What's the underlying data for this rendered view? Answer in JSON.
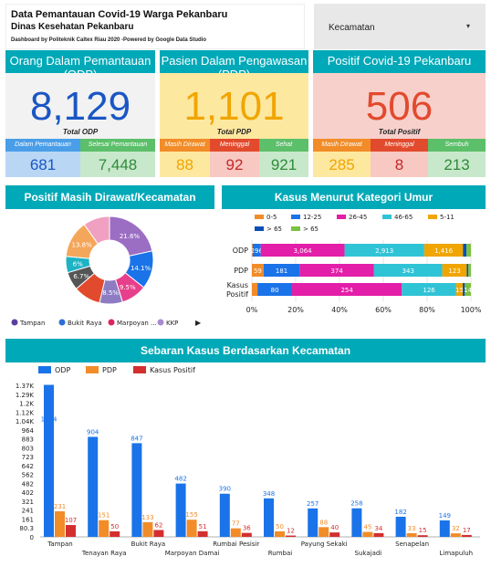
{
  "header": {
    "title": "Data Pemantauan Covid-19 Warga Pekanbaru",
    "subtitle": "Dinas Kesehatan Pekanbaru",
    "credit": "Dashboard by Politeknik Caltex Riau 2020 -Powered by Google Data Studio"
  },
  "filter": {
    "label": "Kecamatan",
    "arrow_icon": "dropdown-arrow-icon"
  },
  "odp": {
    "title": "Orang Dalam Pemantauan (ODP)",
    "value": "8,129",
    "total_label": "Total ODP",
    "sub": [
      {
        "label": "Dalam Pemantauan",
        "value": "681"
      },
      {
        "label": "Selesai Pemantauan",
        "value": "7,448"
      }
    ],
    "colors": {
      "head": "#00a9b8",
      "body": "#f2f2f2",
      "num": "#1a56c4",
      "sub1_head": "#4a9ee8",
      "sub1_body": "#b9d7f5",
      "sub2_head": "#5cbf6a",
      "sub2_body": "#c8e8cb"
    }
  },
  "pdp": {
    "title": "Pasien Dalam Pengawasan (PDP)",
    "value": "1,101",
    "total_label": "Total PDP",
    "sub": [
      {
        "label": "Masih Dirawat",
        "value": "88"
      },
      {
        "label": "Meninggal",
        "value": "92"
      },
      {
        "label": "Sehat",
        "value": "921"
      }
    ],
    "colors": {
      "head": "#00a9b8",
      "body": "#fde8a0",
      "num": "#f0a500"
    }
  },
  "positif": {
    "title": "Positif Covid-19 Pekanbaru",
    "value": "506",
    "total_label": "Total Positif",
    "sub": [
      {
        "label": "Masih Dirawat",
        "value": "285"
      },
      {
        "label": "Meninggal",
        "value": "8"
      },
      {
        "label": "Sembuh",
        "value": "213"
      }
    ],
    "colors": {
      "head": "#00a9b8",
      "body": "#f7d0cc",
      "num": "#e24a2d"
    }
  },
  "sections": {
    "donut_title": "Positif Masih Dirawat/Kecamatan",
    "age_title": "Kasus Menurut Kategori Umur",
    "kec_title": "Sebaran Kasus Berdasarkan Kecamatan"
  },
  "donut_legend": [
    {
      "label": "Tampan",
      "color": "#5b3fa0"
    },
    {
      "label": "Bukit Raya",
      "color": "#2c6fd6"
    },
    {
      "label": "Marpoyan ...",
      "color": "#e0245e"
    },
    {
      "label": "KKP",
      "color": "#a78bd0"
    }
  ],
  "donut_nav_icon": "play-arrow-icon",
  "chart_data": [
    {
      "type": "pie",
      "title": "Positif Masih Dirawat/Kecamatan",
      "slices": [
        {
          "value": 21.6,
          "label": "21.6%",
          "color": "#9b6ec4"
        },
        {
          "value": 14.1,
          "label": "14.1%",
          "color": "#1a73e8"
        },
        {
          "value": 9.5,
          "label": "9.5%",
          "color": "#e83f8c"
        },
        {
          "value": 8.5,
          "label": "8.5%",
          "color": "#8e7cc3"
        },
        {
          "value": 10.0,
          "label": "",
          "color": "#e24a2d"
        },
        {
          "value": 6.7,
          "label": "6.7%",
          "color": "#555555"
        },
        {
          "value": 6.0,
          "label": "6%",
          "color": "#1db3c4"
        },
        {
          "value": 13.8,
          "label": "13.8%",
          "color": "#f4a65a"
        },
        {
          "value": 9.8,
          "label": "",
          "color": "#f0a0c0"
        }
      ]
    },
    {
      "type": "bar",
      "title": "Kasus Menurut Kategori Umur",
      "stacked": "percent",
      "categories": [
        "ODP",
        "PDP",
        "Kasus Positif"
      ],
      "xticks": [
        "0%",
        "20%",
        "40%",
        "60%",
        "80%",
        "100%"
      ],
      "series": [
        {
          "name": "0-5",
          "color": "#f28c28",
          "values": [
            28,
            59,
            13
          ],
          "labels": [
            "",
            "59",
            ""
          ]
        },
        {
          "name": "12-25",
          "color": "#1a73e8",
          "values": [
            296,
            181,
            80
          ],
          "labels": [
            "296",
            "181",
            "80"
          ]
        },
        {
          "name": "26-45",
          "color": "#e31ea8",
          "values": [
            3064,
            374,
            254
          ],
          "labels": [
            "3,064",
            "374",
            "254"
          ]
        },
        {
          "name": "46-65",
          "color": "#2fc3d6",
          "values": [
            2913,
            343,
            126
          ],
          "labels": [
            "2,913",
            "343",
            "126"
          ]
        },
        {
          "name": "5-11",
          "color": "#f0a500",
          "values": [
            1416,
            123,
            15
          ],
          "labels": [
            "1,416",
            "123",
            "15"
          ]
        },
        {
          "name": "> 65",
          "color": "#0a4fb5",
          "values": [
            130,
            8,
            5
          ],
          "labels": [
            "",
            "",
            ""
          ]
        },
        {
          "name": "> 65",
          "color": "#7cc242",
          "values": [
            160,
            13,
            14
          ],
          "labels": [
            "",
            "",
            "14"
          ]
        }
      ],
      "legend": [
        "0-5",
        "12-25",
        "26-45",
        "46-65",
        "5-11",
        "> 65",
        "> 65"
      ]
    },
    {
      "type": "bar",
      "title": "Sebaran Kasus Berdasarkan Kecamatan",
      "categories": [
        "Tampan",
        "Tenayan Raya",
        "Bukit Raya",
        "Marpoyan Damai",
        "Rumbai Pesisir",
        "Rumbai",
        "Payung Sekaki",
        "Sukajadi",
        "Senapelan",
        "Limapuluh"
      ],
      "ylim": [
        0,
        1370
      ],
      "yticks": [
        "80.3",
        "161",
        "241",
        "321",
        "402",
        "482",
        "562",
        "642",
        "723",
        "803",
        "883",
        "964",
        "1.04K",
        "1.12K",
        "1.2K",
        "1.29K",
        "1.37K"
      ],
      "series": [
        {
          "name": "ODP",
          "color": "#1a73e8",
          "values": [
            1374,
            904,
            847,
            482,
            390,
            348,
            257,
            258,
            182,
            149
          ],
          "labels": [
            "1374",
            "904",
            "847",
            "482",
            "390",
            "348",
            "257",
            "258",
            "182",
            "149"
          ]
        },
        {
          "name": "PDP",
          "color": "#f28c28",
          "values": [
            231,
            151,
            133,
            155,
            77,
            50,
            88,
            45,
            33,
            32
          ],
          "labels": [
            "231",
            "151",
            "133",
            "155",
            "77",
            "50",
            "88",
            "45",
            "33",
            "32"
          ]
        },
        {
          "name": "Kasus Positif",
          "color": "#d32f2f",
          "values": [
            107,
            50,
            62,
            51,
            36,
            12,
            40,
            34,
            15,
            17
          ],
          "labels": [
            "107",
            "50",
            "62",
            "51",
            "36",
            "12",
            "40",
            "34",
            "15",
            "17"
          ]
        }
      ]
    }
  ]
}
